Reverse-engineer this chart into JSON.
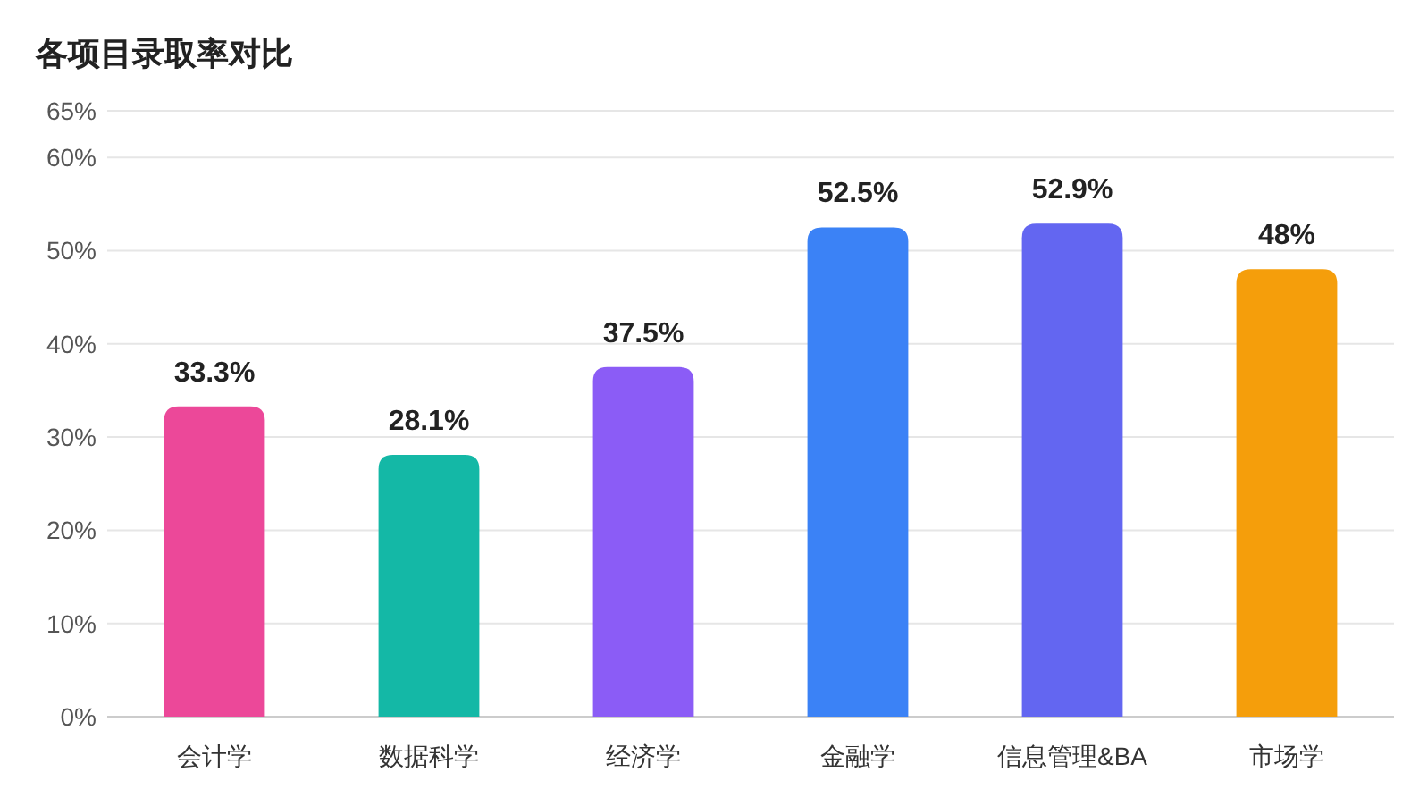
{
  "chart_data": {
    "type": "bar",
    "title": "各项目录取率对比",
    "categories": [
      "会计学",
      "数据科学",
      "经济学",
      "金融学",
      "信息管理&BA",
      "市场学"
    ],
    "values": [
      33.3,
      28.1,
      37.5,
      52.5,
      52.9,
      48
    ],
    "colors": [
      "#ec4899",
      "#14b8a6",
      "#8b5cf6",
      "#3b82f6",
      "#6366f1",
      "#f59e0b"
    ],
    "value_labels": [
      "33.3%",
      "28.1%",
      "37.5%",
      "52.5%",
      "52.9%",
      "48%"
    ],
    "ylim": [
      0,
      65
    ],
    "yticks": [
      {
        "value": 0,
        "label": "0%"
      },
      {
        "value": 10,
        "label": "10%"
      },
      {
        "value": 20,
        "label": "20%"
      },
      {
        "value": 30,
        "label": "30%"
      },
      {
        "value": 40,
        "label": "40%"
      },
      {
        "value": 50,
        "label": "50%"
      },
      {
        "value": 60,
        "label": "60%"
      },
      {
        "value": 65,
        "label": "65%"
      }
    ],
    "grid": "y"
  }
}
